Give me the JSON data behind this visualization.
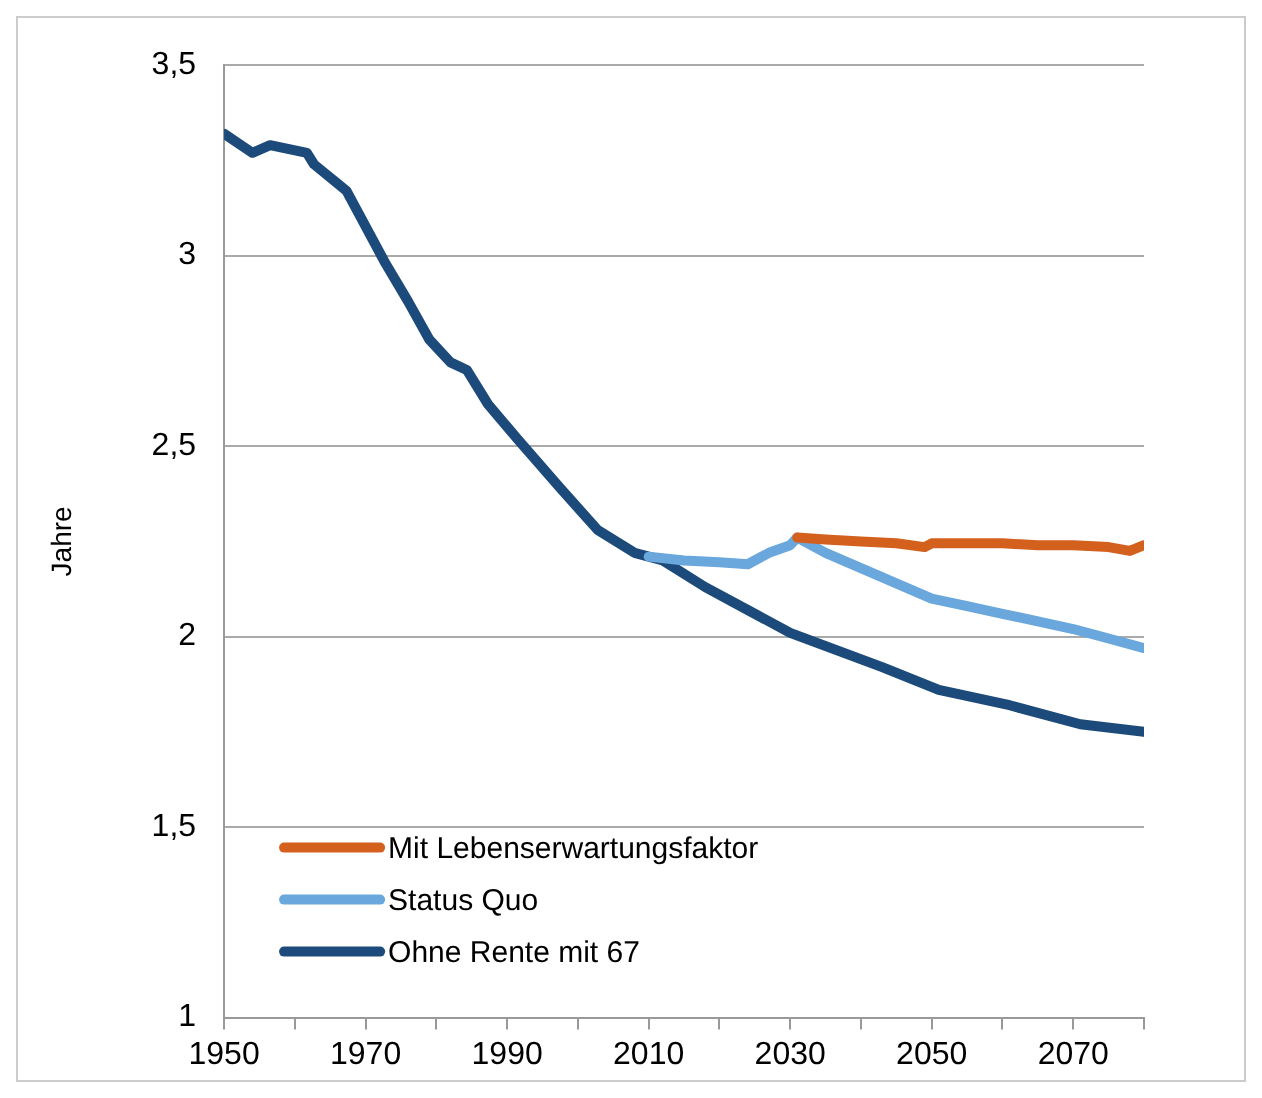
{
  "chart_data": {
    "type": "line",
    "ylabel": "Jahre",
    "xlim": [
      1950,
      2080
    ],
    "xticks": [
      1950,
      {
        "value": 1960,
        "label": null
      },
      1970,
      {
        "value": 1980,
        "label": null
      },
      1990,
      {
        "value": 2000,
        "label": null
      },
      2010,
      {
        "value": 2020,
        "label": null
      },
      2030,
      {
        "value": 2040,
        "label": null
      },
      2050,
      {
        "value": 2060,
        "label": null
      },
      2070,
      {
        "value": 2080,
        "label": null
      }
    ],
    "ylim": [
      1,
      3.5
    ],
    "yticks": [
      1,
      {
        "value": 1.5,
        "label": "1,5"
      },
      2,
      {
        "value": 2.5,
        "label": "2,5"
      },
      3,
      {
        "value": 3.5,
        "label": "3,5"
      }
    ],
    "grid": "y",
    "legend": "bottom left",
    "marker": "none",
    "line_style": "solid",
    "series": [
      {
        "name": "Mit Lebenserwartungsfaktor",
        "color": "#d4601e",
        "x": [
          2031,
          2035,
          2040,
          2045,
          2049,
          2050,
          2055,
          2060,
          2065,
          2070,
          2075,
          2078,
          2080
        ],
        "values": [
          2.26,
          2.255,
          2.25,
          2.245,
          2.235,
          2.245,
          2.245,
          2.245,
          2.24,
          2.24,
          2.235,
          2.225,
          2.24
        ]
      },
      {
        "name": "Status Quo",
        "color": "#6aa7dc",
        "x": [
          2010,
          2015,
          2020,
          2024,
          2027,
          2030,
          2031,
          2035,
          2040,
          2045,
          2050,
          2055,
          2060,
          2065,
          2070,
          2075,
          2080
        ],
        "values": [
          2.21,
          2.2,
          2.195,
          2.19,
          2.22,
          2.24,
          2.26,
          2.22,
          2.18,
          2.14,
          2.1,
          2.08,
          2.06,
          2.04,
          2.02,
          1.995,
          1.97
        ]
      },
      {
        "name": "Ohne Rente mit 67",
        "color": "#1c4a7a",
        "x": [
          1950,
          1954,
          1956.5,
          1961.7,
          1962.7,
          1967.3,
          1972.8,
          1976,
          1979,
          1982,
          1984.3,
          1987.3,
          1991.4,
          1997.5,
          2002.8,
          2008,
          2012,
          2018,
          2024,
          2030,
          2043,
          2051,
          2061,
          2071,
          2080
        ],
        "values": [
          3.32,
          3.27,
          3.29,
          3.27,
          3.24,
          3.17,
          2.98,
          2.88,
          2.78,
          2.72,
          2.7,
          2.61,
          2.52,
          2.39,
          2.28,
          2.22,
          2.2,
          2.13,
          2.07,
          2.01,
          1.92,
          1.86,
          1.82,
          1.77,
          1.75
        ]
      }
    ]
  }
}
